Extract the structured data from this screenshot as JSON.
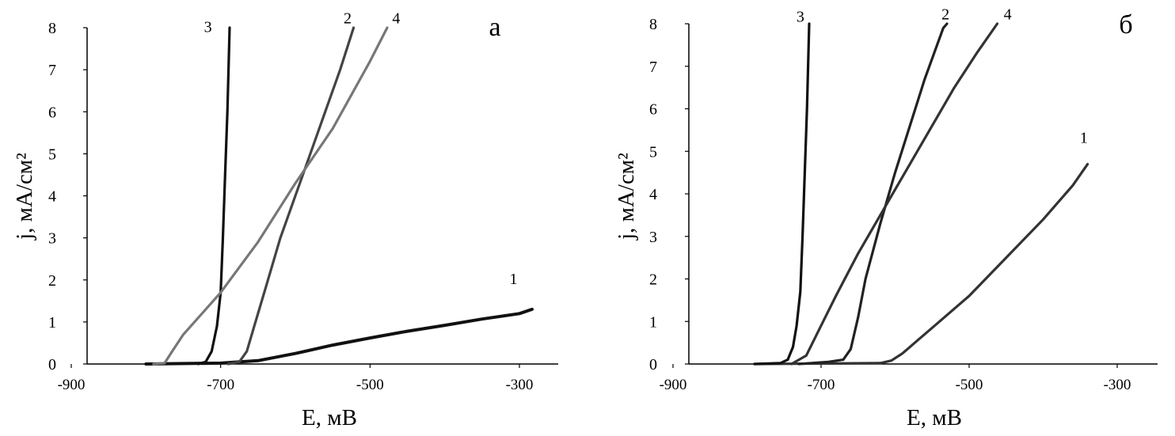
{
  "chart_data": [
    {
      "type": "line",
      "panel_label": "а",
      "xlabel": "E, мВ",
      "ylabel": "j, мА/см²",
      "xlim": [
        -900,
        -250
      ],
      "ylim": [
        0,
        8
      ],
      "xticks": [
        -900,
        -700,
        -500,
        -300
      ],
      "yticks": [
        0,
        1,
        2,
        3,
        4,
        5,
        6,
        7,
        8
      ],
      "grid": false,
      "series": [
        {
          "name": "1",
          "color": "#111111",
          "points": [
            [
              -800,
              0
            ],
            [
              -700,
              0.02
            ],
            [
              -650,
              0.08
            ],
            [
              -600,
              0.25
            ],
            [
              -550,
              0.45
            ],
            [
              -500,
              0.62
            ],
            [
              -450,
              0.78
            ],
            [
              -400,
              0.92
            ],
            [
              -350,
              1.07
            ],
            [
              -300,
              1.2
            ],
            [
              -283,
              1.3
            ]
          ]
        },
        {
          "name": "2",
          "color": "#444444",
          "points": [
            [
              -690,
              0
            ],
            [
              -675,
              0.05
            ],
            [
              -665,
              0.3
            ],
            [
              -655,
              0.9
            ],
            [
              -640,
              1.8
            ],
            [
              -620,
              3.0
            ],
            [
              -600,
              4.0
            ],
            [
              -580,
              5.0
            ],
            [
              -560,
              6.0
            ],
            [
              -540,
              7.0
            ],
            [
              -522,
              8.0
            ]
          ]
        },
        {
          "name": "3",
          "color": "#111111",
          "points": [
            [
              -730,
              0
            ],
            [
              -720,
              0.05
            ],
            [
              -712,
              0.3
            ],
            [
              -705,
              0.9
            ],
            [
              -700,
              1.7
            ],
            [
              -697,
              3.0
            ],
            [
              -694,
              4.5
            ],
            [
              -691,
              6.0
            ],
            [
              -688,
              8.0
            ]
          ]
        },
        {
          "name": "4",
          "color": "#777777",
          "points": [
            [
              -790,
              0
            ],
            [
              -775,
              0.02
            ],
            [
              -765,
              0.3
            ],
            [
              -750,
              0.7
            ],
            [
              -700,
              1.7
            ],
            [
              -650,
              2.9
            ],
            [
              -600,
              4.3
            ],
            [
              -550,
              5.6
            ],
            [
              -500,
              7.2
            ],
            [
              -477,
              8.0
            ]
          ]
        }
      ],
      "series_label_positions": [
        {
          "series": "1",
          "at": [
            -308,
            1.9
          ]
        },
        {
          "series": "2",
          "at": [
            -530,
            8.1
          ]
        },
        {
          "series": "3",
          "at": [
            -717,
            7.9
          ]
        },
        {
          "series": "4",
          "at": [
            -465,
            8.1
          ]
        }
      ]
    },
    {
      "type": "line",
      "panel_label": "б",
      "xlabel": "E, мВ",
      "ylabel": "j, мА/см²",
      "xlim": [
        -900,
        -250
      ],
      "ylim": [
        0,
        8
      ],
      "xticks": [
        -900,
        -700,
        -500,
        -300
      ],
      "yticks": [
        0,
        1,
        2,
        3,
        4,
        5,
        6,
        7,
        8
      ],
      "grid": false,
      "series": [
        {
          "name": "1",
          "color": "#333333",
          "points": [
            [
              -790,
              0
            ],
            [
              -620,
              0.02
            ],
            [
              -605,
              0.08
            ],
            [
              -590,
              0.25
            ],
            [
              -570,
              0.55
            ],
            [
              -550,
              0.85
            ],
            [
              -500,
              1.6
            ],
            [
              -450,
              2.5
            ],
            [
              -400,
              3.4
            ],
            [
              -360,
              4.2
            ],
            [
              -340,
              4.7
            ]
          ]
        },
        {
          "name": "2",
          "color": "#222222",
          "points": [
            [
              -730,
              0
            ],
            [
              -690,
              0.05
            ],
            [
              -670,
              0.1
            ],
            [
              -660,
              0.35
            ],
            [
              -650,
              1.1
            ],
            [
              -640,
              2.0
            ],
            [
              -620,
              3.3
            ],
            [
              -600,
              4.5
            ],
            [
              -580,
              5.6
            ],
            [
              -560,
              6.7
            ],
            [
              -535,
              7.9
            ],
            [
              -530,
              8.0
            ]
          ]
        },
        {
          "name": "3",
          "color": "#111111",
          "points": [
            [
              -790,
              0
            ],
            [
              -755,
              0.02
            ],
            [
              -745,
              0.1
            ],
            [
              -738,
              0.4
            ],
            [
              -733,
              0.9
            ],
            [
              -728,
              1.7
            ],
            [
              -725,
              3.0
            ],
            [
              -722,
              4.5
            ],
            [
              -719,
              6.0
            ],
            [
              -716,
              8.0
            ]
          ]
        },
        {
          "name": "4",
          "color": "#333333",
          "points": [
            [
              -740,
              0
            ],
            [
              -720,
              0.2
            ],
            [
              -700,
              0.9
            ],
            [
              -680,
              1.6
            ],
            [
              -650,
              2.6
            ],
            [
              -620,
              3.5
            ],
            [
              -600,
              4.1
            ],
            [
              -560,
              5.3
            ],
            [
              -520,
              6.5
            ],
            [
              -490,
              7.3
            ],
            [
              -462,
              8.0
            ]
          ]
        }
      ],
      "series_label_positions": [
        {
          "series": "1",
          "at": [
            -345,
            5.2
          ]
        },
        {
          "series": "2",
          "at": [
            -532,
            8.1
          ]
        },
        {
          "series": "3",
          "at": [
            -728,
            8.05
          ]
        },
        {
          "series": "4",
          "at": [
            -448,
            8.1
          ]
        }
      ]
    }
  ]
}
